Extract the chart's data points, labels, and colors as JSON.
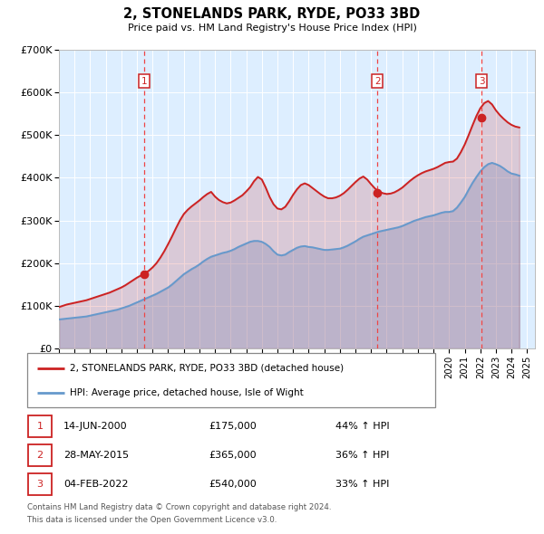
{
  "title": "2, STONELANDS PARK, RYDE, PO33 3BD",
  "subtitle": "Price paid vs. HM Land Registry's House Price Index (HPI)",
  "legend_line1": "2, STONELANDS PARK, RYDE, PO33 3BD (detached house)",
  "legend_line2": "HPI: Average price, detached house, Isle of Wight",
  "footer1": "Contains HM Land Registry data © Crown copyright and database right 2024.",
  "footer2": "This data is licensed under the Open Government Licence v3.0.",
  "transactions": [
    {
      "num": 1,
      "date_label": "14-JUN-2000",
      "price": 175000,
      "price_label": "£175,000",
      "hpi_pct": "44%",
      "x_year": 2000.45
    },
    {
      "num": 2,
      "date_label": "28-MAY-2015",
      "price": 365000,
      "price_label": "£365,000",
      "hpi_pct": "36%",
      "x_year": 2015.41
    },
    {
      "num": 3,
      "date_label": "04-FEB-2022",
      "price": 540000,
      "price_label": "£540,000",
      "hpi_pct": "33%",
      "x_year": 2022.09
    }
  ],
  "hpi_color": "#6699cc",
  "price_color": "#cc2222",
  "marker_color": "#cc2222",
  "dashed_line_color": "#ee4444",
  "plot_bg_color": "#ddeeff",
  "ylim": [
    0,
    700000
  ],
  "xlim_start": 1995.0,
  "xlim_end": 2025.5,
  "yticks": [
    0,
    100000,
    200000,
    300000,
    400000,
    500000,
    600000,
    700000
  ],
  "ytick_labels": [
    "£0",
    "£100K",
    "£200K",
    "£300K",
    "£400K",
    "£500K",
    "£600K",
    "£700K"
  ],
  "xticks": [
    1995,
    1996,
    1997,
    1998,
    1999,
    2000,
    2001,
    2002,
    2003,
    2004,
    2005,
    2006,
    2007,
    2008,
    2009,
    2010,
    2011,
    2012,
    2013,
    2014,
    2015,
    2016,
    2017,
    2018,
    2019,
    2020,
    2021,
    2022,
    2023,
    2024,
    2025
  ],
  "hpi_data": [
    [
      1995.0,
      68000
    ],
    [
      1995.25,
      69000
    ],
    [
      1995.5,
      70000
    ],
    [
      1995.75,
      71000
    ],
    [
      1996.0,
      72000
    ],
    [
      1996.25,
      73000
    ],
    [
      1996.5,
      74000
    ],
    [
      1996.75,
      75000
    ],
    [
      1997.0,
      77000
    ],
    [
      1997.25,
      79000
    ],
    [
      1997.5,
      81000
    ],
    [
      1997.75,
      83000
    ],
    [
      1998.0,
      85000
    ],
    [
      1998.25,
      87000
    ],
    [
      1998.5,
      89000
    ],
    [
      1998.75,
      91000
    ],
    [
      1999.0,
      94000
    ],
    [
      1999.25,
      97000
    ],
    [
      1999.5,
      100000
    ],
    [
      1999.75,
      104000
    ],
    [
      2000.0,
      108000
    ],
    [
      2000.25,
      112000
    ],
    [
      2000.5,
      116000
    ],
    [
      2000.75,
      120000
    ],
    [
      2001.0,
      124000
    ],
    [
      2001.25,
      128000
    ],
    [
      2001.5,
      133000
    ],
    [
      2001.75,
      138000
    ],
    [
      2002.0,
      143000
    ],
    [
      2002.25,
      150000
    ],
    [
      2002.5,
      158000
    ],
    [
      2002.75,
      166000
    ],
    [
      2003.0,
      174000
    ],
    [
      2003.25,
      180000
    ],
    [
      2003.5,
      186000
    ],
    [
      2003.75,
      191000
    ],
    [
      2004.0,
      197000
    ],
    [
      2004.25,
      204000
    ],
    [
      2004.5,
      210000
    ],
    [
      2004.75,
      215000
    ],
    [
      2005.0,
      218000
    ],
    [
      2005.25,
      221000
    ],
    [
      2005.5,
      224000
    ],
    [
      2005.75,
      226000
    ],
    [
      2006.0,
      229000
    ],
    [
      2006.25,
      233000
    ],
    [
      2006.5,
      238000
    ],
    [
      2006.75,
      242000
    ],
    [
      2007.0,
      246000
    ],
    [
      2007.25,
      250000
    ],
    [
      2007.5,
      252000
    ],
    [
      2007.75,
      252000
    ],
    [
      2008.0,
      250000
    ],
    [
      2008.25,
      245000
    ],
    [
      2008.5,
      238000
    ],
    [
      2008.75,
      228000
    ],
    [
      2009.0,
      220000
    ],
    [
      2009.25,
      218000
    ],
    [
      2009.5,
      220000
    ],
    [
      2009.75,
      226000
    ],
    [
      2010.0,
      231000
    ],
    [
      2010.25,
      236000
    ],
    [
      2010.5,
      239000
    ],
    [
      2010.75,
      240000
    ],
    [
      2011.0,
      238000
    ],
    [
      2011.25,
      237000
    ],
    [
      2011.5,
      235000
    ],
    [
      2011.75,
      233000
    ],
    [
      2012.0,
      231000
    ],
    [
      2012.25,
      231000
    ],
    [
      2012.5,
      232000
    ],
    [
      2012.75,
      233000
    ],
    [
      2013.0,
      234000
    ],
    [
      2013.25,
      237000
    ],
    [
      2013.5,
      241000
    ],
    [
      2013.75,
      246000
    ],
    [
      2014.0,
      251000
    ],
    [
      2014.25,
      257000
    ],
    [
      2014.5,
      262000
    ],
    [
      2014.75,
      265000
    ],
    [
      2015.0,
      268000
    ],
    [
      2015.25,
      271000
    ],
    [
      2015.5,
      274000
    ],
    [
      2015.75,
      276000
    ],
    [
      2016.0,
      278000
    ],
    [
      2016.25,
      280000
    ],
    [
      2016.5,
      282000
    ],
    [
      2016.75,
      284000
    ],
    [
      2017.0,
      287000
    ],
    [
      2017.25,
      291000
    ],
    [
      2017.5,
      295000
    ],
    [
      2017.75,
      299000
    ],
    [
      2018.0,
      302000
    ],
    [
      2018.25,
      305000
    ],
    [
      2018.5,
      308000
    ],
    [
      2018.75,
      310000
    ],
    [
      2019.0,
      312000
    ],
    [
      2019.25,
      315000
    ],
    [
      2019.5,
      318000
    ],
    [
      2019.75,
      320000
    ],
    [
      2020.0,
      320000
    ],
    [
      2020.25,
      322000
    ],
    [
      2020.5,
      330000
    ],
    [
      2020.75,
      342000
    ],
    [
      2021.0,
      355000
    ],
    [
      2021.25,
      372000
    ],
    [
      2021.5,
      388000
    ],
    [
      2021.75,
      402000
    ],
    [
      2022.0,
      415000
    ],
    [
      2022.25,
      425000
    ],
    [
      2022.5,
      432000
    ],
    [
      2022.75,
      435000
    ],
    [
      2023.0,
      432000
    ],
    [
      2023.25,
      428000
    ],
    [
      2023.5,
      422000
    ],
    [
      2023.75,
      415000
    ],
    [
      2024.0,
      410000
    ],
    [
      2024.25,
      408000
    ],
    [
      2024.5,
      405000
    ]
  ],
  "price_data": [
    [
      1995.0,
      97000
    ],
    [
      1995.25,
      100000
    ],
    [
      1995.5,
      103000
    ],
    [
      1995.75,
      105000
    ],
    [
      1996.0,
      107000
    ],
    [
      1996.25,
      109000
    ],
    [
      1996.5,
      111000
    ],
    [
      1996.75,
      113000
    ],
    [
      1997.0,
      116000
    ],
    [
      1997.25,
      119000
    ],
    [
      1997.5,
      122000
    ],
    [
      1997.75,
      125000
    ],
    [
      1998.0,
      128000
    ],
    [
      1998.25,
      131000
    ],
    [
      1998.5,
      135000
    ],
    [
      1998.75,
      139000
    ],
    [
      1999.0,
      143000
    ],
    [
      1999.25,
      148000
    ],
    [
      1999.5,
      154000
    ],
    [
      1999.75,
      160000
    ],
    [
      2000.0,
      166000
    ],
    [
      2000.25,
      171000
    ],
    [
      2000.5,
      176000
    ],
    [
      2000.75,
      182000
    ],
    [
      2001.0,
      190000
    ],
    [
      2001.25,
      200000
    ],
    [
      2001.5,
      213000
    ],
    [
      2001.75,
      228000
    ],
    [
      2002.0,
      245000
    ],
    [
      2002.25,
      263000
    ],
    [
      2002.5,
      282000
    ],
    [
      2002.75,
      300000
    ],
    [
      2003.0,
      315000
    ],
    [
      2003.25,
      325000
    ],
    [
      2003.5,
      333000
    ],
    [
      2003.75,
      340000
    ],
    [
      2004.0,
      347000
    ],
    [
      2004.25,
      355000
    ],
    [
      2004.5,
      362000
    ],
    [
      2004.75,
      367000
    ],
    [
      2005.0,
      356000
    ],
    [
      2005.25,
      348000
    ],
    [
      2005.5,
      343000
    ],
    [
      2005.75,
      340000
    ],
    [
      2006.0,
      342000
    ],
    [
      2006.25,
      347000
    ],
    [
      2006.5,
      353000
    ],
    [
      2006.75,
      359000
    ],
    [
      2007.0,
      368000
    ],
    [
      2007.25,
      378000
    ],
    [
      2007.5,
      392000
    ],
    [
      2007.75,
      402000
    ],
    [
      2008.0,
      396000
    ],
    [
      2008.25,
      377000
    ],
    [
      2008.5,
      355000
    ],
    [
      2008.75,
      338000
    ],
    [
      2009.0,
      328000
    ],
    [
      2009.25,
      326000
    ],
    [
      2009.5,
      332000
    ],
    [
      2009.75,
      345000
    ],
    [
      2010.0,
      360000
    ],
    [
      2010.25,
      373000
    ],
    [
      2010.5,
      383000
    ],
    [
      2010.75,
      387000
    ],
    [
      2011.0,
      383000
    ],
    [
      2011.25,
      376000
    ],
    [
      2011.5,
      369000
    ],
    [
      2011.75,
      362000
    ],
    [
      2012.0,
      356000
    ],
    [
      2012.25,
      352000
    ],
    [
      2012.5,
      352000
    ],
    [
      2012.75,
      354000
    ],
    [
      2013.0,
      358000
    ],
    [
      2013.25,
      364000
    ],
    [
      2013.5,
      372000
    ],
    [
      2013.75,
      381000
    ],
    [
      2014.0,
      390000
    ],
    [
      2014.25,
      398000
    ],
    [
      2014.5,
      403000
    ],
    [
      2014.75,
      396000
    ],
    [
      2015.0,
      385000
    ],
    [
      2015.25,
      375000
    ],
    [
      2015.5,
      368000
    ],
    [
      2015.75,
      364000
    ],
    [
      2016.0,
      362000
    ],
    [
      2016.25,
      363000
    ],
    [
      2016.5,
      366000
    ],
    [
      2016.75,
      371000
    ],
    [
      2017.0,
      377000
    ],
    [
      2017.25,
      385000
    ],
    [
      2017.5,
      393000
    ],
    [
      2017.75,
      400000
    ],
    [
      2018.0,
      406000
    ],
    [
      2018.25,
      411000
    ],
    [
      2018.5,
      415000
    ],
    [
      2018.75,
      418000
    ],
    [
      2019.0,
      421000
    ],
    [
      2019.25,
      425000
    ],
    [
      2019.5,
      430000
    ],
    [
      2019.75,
      435000
    ],
    [
      2020.0,
      437000
    ],
    [
      2020.25,
      438000
    ],
    [
      2020.5,
      445000
    ],
    [
      2020.75,
      460000
    ],
    [
      2021.0,
      478000
    ],
    [
      2021.25,
      500000
    ],
    [
      2021.5,
      523000
    ],
    [
      2021.75,
      545000
    ],
    [
      2022.0,
      563000
    ],
    [
      2022.25,
      575000
    ],
    [
      2022.5,
      580000
    ],
    [
      2022.75,
      572000
    ],
    [
      2023.0,
      558000
    ],
    [
      2023.25,
      547000
    ],
    [
      2023.5,
      538000
    ],
    [
      2023.75,
      530000
    ],
    [
      2024.0,
      524000
    ],
    [
      2024.25,
      520000
    ],
    [
      2024.5,
      518000
    ]
  ]
}
